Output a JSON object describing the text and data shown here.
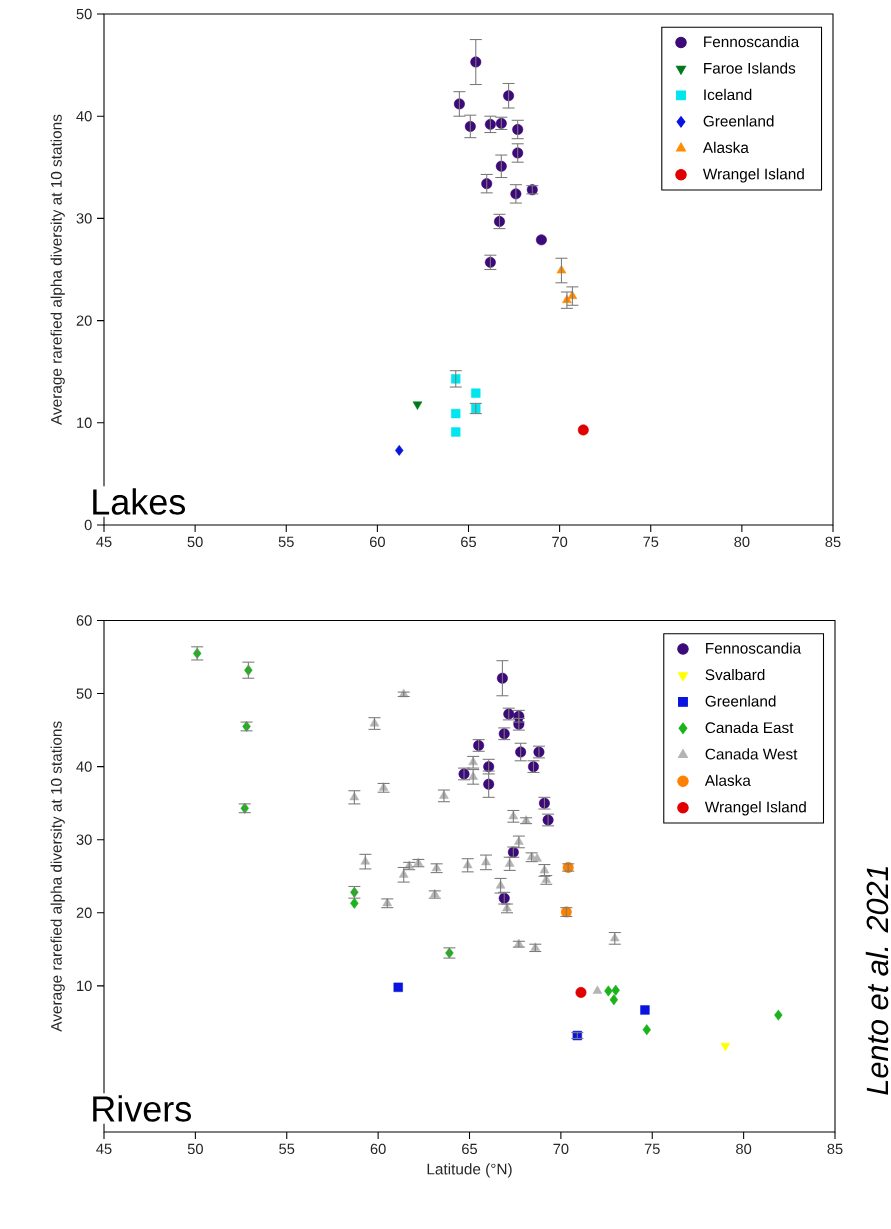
{
  "chart_data": [
    {
      "type": "scatter",
      "ylabel": "Average rarefied alpha diversity at 10 stations",
      "xlim": [
        45,
        85
      ],
      "xticks": [
        45,
        50,
        55,
        60,
        65,
        70,
        75,
        80,
        85
      ],
      "ylim": [
        0,
        50
      ],
      "yticks": [
        0,
        10,
        20,
        30,
        40,
        50
      ],
      "legend": "top right",
      "grid": false,
      "annotations": [
        "Lakes"
      ],
      "series": [
        {
          "name": "Fennoscandia",
          "color": "#3d0a7a",
          "marker": "circle",
          "x": [
            64.5,
            65.4,
            65.1,
            66.2,
            66.8,
            67.2,
            67.7,
            67.7,
            66.8,
            66.0,
            67.6,
            68.5,
            66.7,
            69.0,
            66.2
          ],
          "values": [
            41.2,
            45.3,
            39.0,
            39.2,
            39.3,
            42.0,
            38.7,
            36.4,
            35.1,
            33.4,
            32.4,
            32.8,
            29.7,
            27.9,
            25.7
          ],
          "errors": [
            1.2,
            2.2,
            1.1,
            0.8,
            0.6,
            1.2,
            0.9,
            0.9,
            1.1,
            0.9,
            0.9,
            0.4,
            0.7,
            null,
            0.7
          ]
        },
        {
          "name": "Faroe Islands",
          "color": "#007a1a",
          "marker": "triangle-down",
          "x": [
            62.2
          ],
          "values": [
            11.8
          ],
          "errors": [
            null
          ]
        },
        {
          "name": "Iceland",
          "color": "#00e5ee",
          "marker": "square",
          "x": [
            64.3,
            64.3,
            64.3,
            65.4,
            65.4
          ],
          "values": [
            14.3,
            10.9,
            9.1,
            12.9,
            11.4
          ],
          "errors": [
            0.8,
            null,
            null,
            null,
            0.5
          ]
        },
        {
          "name": "Greenland",
          "color": "#0a14e0",
          "marker": "diamond",
          "x": [
            61.2
          ],
          "values": [
            7.3
          ],
          "errors": [
            null
          ]
        },
        {
          "name": "Alaska",
          "color": "#ff8c00",
          "marker": "triangle",
          "x": [
            70.1,
            70.4,
            70.7
          ],
          "values": [
            24.9,
            22.0,
            22.4
          ],
          "errors": [
            1.2,
            0.8,
            0.9
          ]
        },
        {
          "name": "Wrangel Island",
          "color": "#e00000",
          "marker": "circle",
          "x": [
            71.3
          ],
          "values": [
            9.3
          ],
          "errors": [
            null
          ]
        }
      ]
    },
    {
      "type": "scatter",
      "xlabel": "Latitude (°N)",
      "ylabel": "Average rarefied alpha diversity at 10 stations",
      "xlim": [
        45,
        85
      ],
      "xticks": [
        45,
        50,
        55,
        60,
        65,
        70,
        75,
        80,
        85
      ],
      "ylim": [
        -10,
        60
      ],
      "yticks": [
        10,
        20,
        30,
        40,
        50,
        60
      ],
      "legend": "top right",
      "grid": false,
      "annotations": [
        "Rivers",
        "Lento et al. 2021"
      ],
      "series": [
        {
          "name": "Fennoscandia",
          "color": "#3d0a7a",
          "marker": "circle",
          "x": [
            66.8,
            67.15,
            67.7,
            67.7,
            66.9,
            65.5,
            67.8,
            68.8,
            68.5,
            66.05,
            64.7,
            66.05,
            69.1,
            69.3,
            67.4,
            66.9
          ],
          "values": [
            52.1,
            47.2,
            46.9,
            45.8,
            44.5,
            42.9,
            42.0,
            42.0,
            40.0,
            40.0,
            39.0,
            37.6,
            35.0,
            32.7,
            28.3,
            22.0
          ],
          "errors": [
            2.4,
            0.8,
            0.8,
            0.8,
            0.8,
            0.8,
            1.2,
            0.8,
            0.8,
            1.0,
            0.8,
            1.8,
            0.8,
            0.8,
            0.7,
            0.8
          ]
        },
        {
          "name": "Svalbard",
          "color": "#ffff00",
          "marker": "triangle-down",
          "x": [
            79.0
          ],
          "values": [
            1.8
          ],
          "errors": [
            null
          ]
        },
        {
          "name": "Greenland",
          "color": "#0a14e0",
          "marker": "square",
          "x": [
            61.1,
            70.9,
            74.6
          ],
          "values": [
            9.8,
            3.2,
            6.7
          ],
          "errors": [
            null,
            0.4,
            null
          ]
        },
        {
          "name": "Canada East",
          "color": "#1ab31a",
          "marker": "diamond",
          "x": [
            50.1,
            52.9,
            52.8,
            52.7,
            58.7,
            58.7,
            63.9,
            72.6,
            73.0,
            72.9,
            74.7,
            81.9
          ],
          "values": [
            55.5,
            53.2,
            45.5,
            34.3,
            22.8,
            21.3,
            14.5,
            9.3,
            9.4,
            8.1,
            4.0,
            6.0
          ],
          "errors": [
            0.9,
            1.1,
            0.6,
            0.6,
            0.8,
            null,
            0.7,
            null,
            null,
            null,
            null,
            null
          ]
        },
        {
          "name": "Canada West",
          "color": "#b4b4b4",
          "marker": "triangle",
          "x": [
            61.4,
            59.8,
            60.3,
            58.7,
            63.6,
            65.2,
            65.2,
            67.4,
            68.1,
            67.7,
            59.3,
            61.4,
            61.7,
            62.2,
            63.2,
            64.9,
            65.9,
            67.2,
            68.4,
            68.7,
            69.1,
            69.2,
            66.7,
            60.5,
            63.1,
            67.05,
            67.7,
            68.6,
            72.95,
            72.0
          ],
          "values": [
            49.9,
            45.9,
            37.1,
            35.8,
            36.0,
            40.6,
            38.6,
            33.2,
            32.6,
            29.7,
            27.0,
            25.2,
            26.4,
            26.8,
            26.1,
            26.5,
            26.9,
            26.7,
            27.6,
            27.4,
            25.8,
            24.5,
            23.7,
            21.3,
            22.5,
            20.6,
            15.7,
            15.2,
            16.5,
            9.3
          ],
          "errors": [
            0.3,
            0.8,
            0.6,
            0.9,
            0.8,
            0.8,
            1.0,
            0.8,
            0.4,
            0.8,
            1.0,
            1.0,
            0.5,
            0.5,
            0.6,
            0.9,
            1.0,
            0.9,
            0.6,
            null,
            0.8,
            0.6,
            1.0,
            0.6,
            0.5,
            0.6,
            0.4,
            0.5,
            0.8,
            null
          ]
        },
        {
          "name": "Alaska",
          "color": "#ff8000",
          "marker": "circle",
          "x": [
            70.4,
            70.3
          ],
          "values": [
            26.2,
            20.1
          ],
          "errors": [
            0.5,
            0.6
          ]
        },
        {
          "name": "Wrangel Island",
          "color": "#e00000",
          "marker": "circle",
          "x": [
            71.1
          ],
          "values": [
            9.1
          ],
          "errors": [
            null
          ]
        }
      ]
    }
  ]
}
